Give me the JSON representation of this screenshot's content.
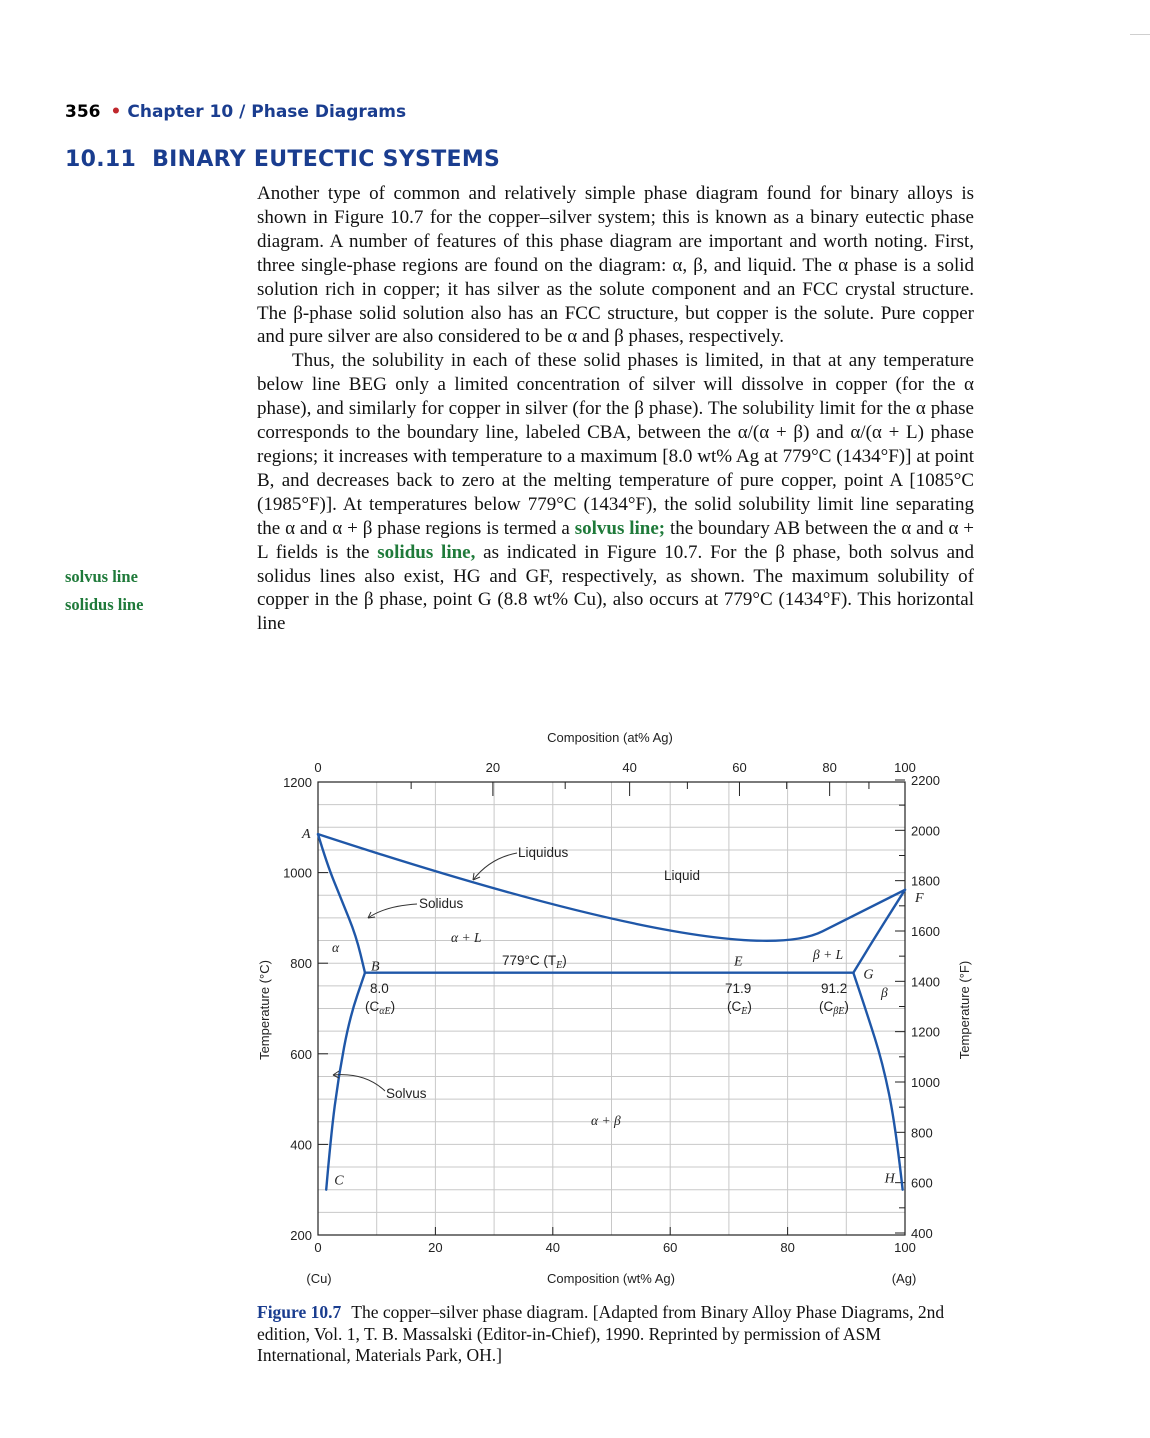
{
  "header": {
    "page_number": "356",
    "bullet": "•",
    "chapter": "Chapter 10 / Phase Diagrams"
  },
  "section": {
    "number": "10.11",
    "title": "BINARY EUTECTIC SYSTEMS"
  },
  "paragraph1": "Another type of common and relatively simple phase diagram found for binary alloys is shown in Figure 10.7 for the copper–silver system; this is known as a binary eutectic phase diagram. A number of features of this phase diagram are important and worth noting. First, three single-phase regions are found on the diagram: α, β, and liquid. The α phase is a solid solution rich in copper; it has silver as the solute component and an FCC crystal structure. The β-phase solid solution also has an FCC structure, but copper is the solute. Pure copper and pure silver are also considered to be α and β phases, respectively.",
  "paragraph2": {
    "part1": "Thus, the solubility in each of these solid phases is limited, in that at any temperature below line BEG only a limited concentration of silver will dissolve in copper (for the α phase), and similarly for copper in silver (for the β phase). The solubility limit for the α phase corresponds to the boundary line, labeled CBA, between the α/(α + β) and α/(α + L) phase regions; it increases with temperature to a maximum [8.0 wt% Ag at 779°C (1434°F)] at point B, and decreases back to zero at the melting temperature of pure copper, point A [1085°C (1985°F)]. At temperatures below 779°C (1434°F), the solid solubility limit line separating the α and α + β phase regions is termed a",
    "term1": "solvus line;",
    "part2": "the boundary AB between the α and α + L fields is the",
    "term2": "solidus line,",
    "part3": "as indicated in Figure 10.7. For the β phase, both solvus and solidus lines also exist, HG and GF, respectively, as shown. The maximum solubility of copper in the β phase, point G (8.8 wt% Cu), also occurs at 779°C (1434°F). This horizontal line"
  },
  "margin_terms": [
    "solvus line",
    "solidus line"
  ],
  "caption": {
    "label": "Figure 10.7",
    "text": "The copper–silver phase diagram. [Adapted from Binary Alloy Phase Diagrams, 2nd edition, Vol. 1, T. B. Massalski (Editor-in-Chief), 1990. Reprinted by permission of ASM International, Materials Park, OH.]"
  },
  "colors": {
    "heading_blue": "#1a3d8f",
    "term_green": "#1f7a3a",
    "curve_blue": "#1f57a8",
    "bullet_red": "#c0282d"
  },
  "chart_data": {
    "type": "line",
    "title": "",
    "top_axis_label": "Composition (at% Ag)",
    "top_axis_ticks": [
      0,
      20,
      40,
      60,
      80,
      100
    ],
    "xlabel": "Composition (wt% Ag)",
    "x_ticks": [
      0,
      20,
      40,
      60,
      80,
      100
    ],
    "xlim": [
      0,
      100
    ],
    "x_end_labels": [
      "(Cu)",
      "(Ag)"
    ],
    "ylabel": "Temperature (°C)",
    "y_ticks": [
      200,
      400,
      600,
      800,
      1000,
      1200
    ],
    "ylim": [
      200,
      1200
    ],
    "right_axis_label": "Temperature (°F)",
    "right_axis_ticks": [
      400,
      600,
      800,
      1000,
      1200,
      1400,
      1600,
      1800,
      2000,
      2200
    ],
    "grid": true,
    "series": [
      {
        "values_x": [
          0,
          71.9,
          100
        ],
        "values_y": [
          1085,
          779,
          962
        ]
      },
      {
        "values_x": [
          0,
          1.5,
          4,
          6.5,
          8.0
        ],
        "values_y": [
          1085,
          1020,
          940,
          860,
          779
        ]
      },
      {
        "values_x": [
          1.4,
          2.2,
          3.5,
          5.4,
          8.0
        ],
        "values_y": [
          300,
          420,
          550,
          680,
          779
        ]
      },
      {
        "values_x": [
          100,
          95.5,
          91.2
        ],
        "values_y": [
          962,
          870,
          779
        ]
      },
      {
        "values_x": [
          99.6,
          98.4,
          96.2,
          93.5,
          91.2
        ],
        "values_y": [
          300,
          440,
          580,
          690,
          779
        ]
      },
      {
        "values_x": [
          8.0,
          91.2
        ],
        "values_y": [
          779,
          779
        ]
      }
    ],
    "point_labels": [
      {
        "text": "A",
        "x": 0,
        "y": 1085
      },
      {
        "text": "B",
        "x": 8.0,
        "y": 779
      },
      {
        "text": "C",
        "x": 1.4,
        "y": 300
      },
      {
        "text": "E",
        "x": 71.9,
        "y": 779
      },
      {
        "text": "F",
        "x": 100,
        "y": 962
      },
      {
        "text": "G",
        "x": 91.2,
        "y": 779
      },
      {
        "text": "H",
        "x": 99.6,
        "y": 300
      }
    ],
    "annotations": {
      "liquidus": "Liquidus",
      "liquid": "Liquid",
      "solidus": "Solidus",
      "solvus": "Solvus",
      "alpha": "α",
      "alpha_l": "α + L",
      "beta_l": "β + L",
      "beta": "β",
      "alpha_beta": "α + β",
      "eutectic_temp": "779°C (T",
      "eutectic_temp_sub": "E",
      "eutectic_temp_close": ")",
      "ca_value": "8.0",
      "ca_label": "(C",
      "ca_sub": "αE",
      "ce_value": "71.9",
      "ce_label": "(C",
      "ce_sub": "E",
      "cb_value": "91.2",
      "cb_label": "(C",
      "cb_sub": "βE",
      "close_paren": ")"
    }
  }
}
